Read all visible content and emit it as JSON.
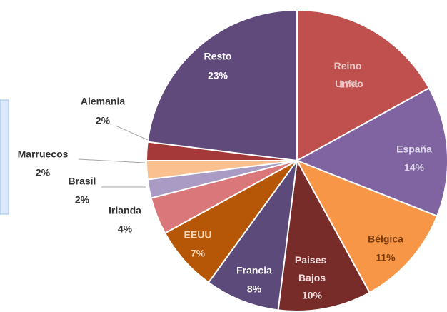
{
  "chart_data": {
    "type": "pie",
    "categories": [
      "Reino Unido",
      "España",
      "Bélgica",
      "Paises Bajos",
      "Francia",
      "EEUU",
      "Irlanda",
      "Brasil",
      "Marruecos",
      "Alemania",
      "Resto"
    ],
    "values": [
      17,
      14,
      11,
      10,
      8,
      7,
      4,
      2,
      2,
      2,
      23
    ],
    "value_labels": [
      "17%",
      "14%",
      "11%",
      "10%",
      "8%",
      "7%",
      "4%",
      "2%",
      "2%",
      "2%",
      "23%"
    ],
    "colors": [
      "#c0504d",
      "#8064a2",
      "#f79646",
      "#772c2a",
      "#5c4a7a",
      "#b65708",
      "#d9777a",
      "#a99bc4",
      "#fac08f",
      "#a5393a",
      "#604a7b"
    ]
  }
}
